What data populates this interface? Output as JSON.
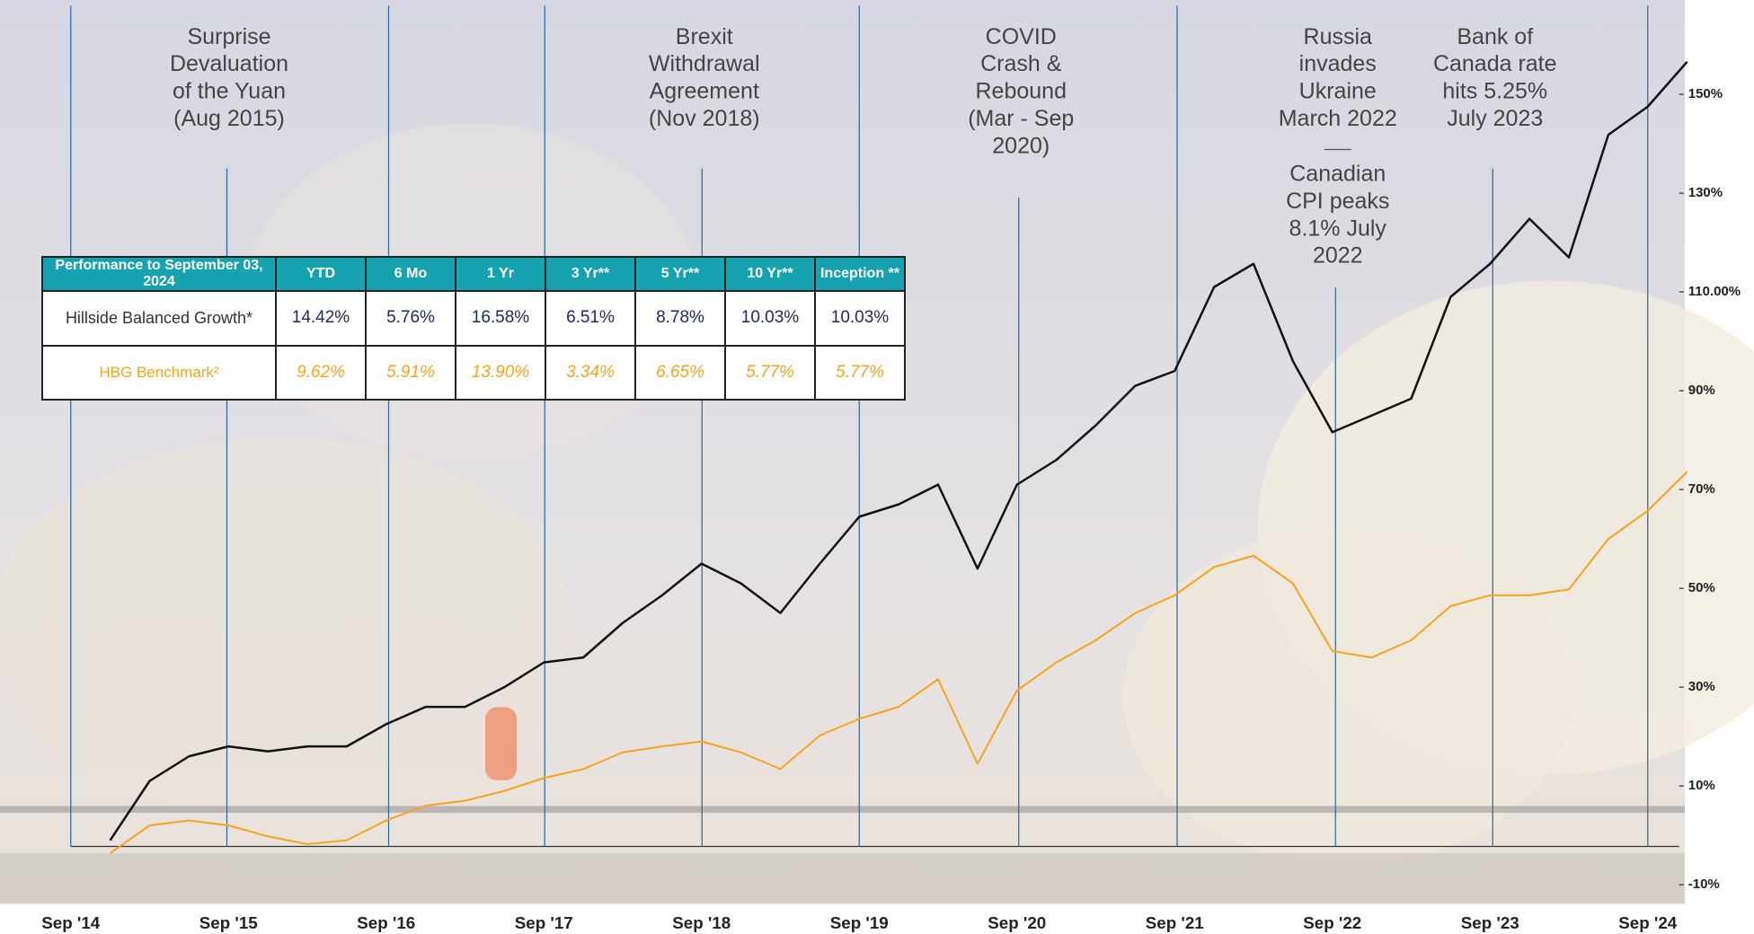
{
  "chart_data": {
    "type": "line",
    "categories": [
      null,
      null,
      null,
      null,
      "Sep '15",
      null,
      null,
      null,
      "Sep '16",
      null,
      null,
      null,
      "Sep '17",
      null,
      null,
      null,
      "Sep '18",
      null,
      null,
      null,
      "Sep '19",
      null,
      null,
      null,
      "Sep '20",
      null,
      null,
      null,
      "Sep '21",
      null,
      null,
      null,
      "Sep '22",
      null,
      null,
      null,
      "Sep '23",
      null,
      null,
      null,
      "Sep '24",
      null
    ],
    "first_label": "Sep '14",
    "series": [
      {
        "name": "Hillside Balanced Growth*",
        "color": "#111111",
        "values": [
          null,
          -1,
          11,
          16,
          18,
          17,
          18,
          18,
          22.5,
          26,
          26,
          30,
          35,
          36,
          43,
          48.6,
          55,
          51,
          45,
          55,
          64.5,
          67,
          71,
          54,
          71,
          76,
          83,
          91,
          94,
          111,
          115.7,
          96,
          81.6,
          85,
          88.4,
          109,
          115.7,
          124.8,
          117,
          141.8,
          147.5,
          156.6
        ]
      },
      {
        "name": "HBG Benchmark²",
        "color": "#f5a41f",
        "values": [
          null,
          -3.6,
          2,
          3,
          2,
          -0.2,
          -1.8,
          -1,
          3,
          6,
          7,
          9,
          11.6,
          13.4,
          16.8,
          18,
          19,
          16.8,
          13.4,
          20.2,
          23.6,
          26,
          31.6,
          14.5,
          29.3,
          35,
          39.5,
          45,
          48.6,
          54.3,
          56.6,
          51,
          37.3,
          36,
          39.5,
          46.4,
          48.6,
          48.6,
          49.8,
          60,
          65.7,
          73.6
        ]
      }
    ],
    "ylim": [
      -12.7,
      169.1
    ],
    "yticks": [
      {
        "value": 150,
        "label": "150%"
      },
      {
        "value": 130,
        "label": "130%"
      },
      {
        "value": 110,
        "label": "110.00%"
      },
      {
        "value": 90,
        "label": "90%"
      },
      {
        "value": 70,
        "label": "70%"
      },
      {
        "value": 50,
        "label": "50%"
      },
      {
        "value": 30,
        "label": "30%"
      },
      {
        "value": 10,
        "label": "10%"
      },
      {
        "value": -10,
        "label": "-10%"
      }
    ],
    "annotations": [
      {
        "lines": [
          "Surprise",
          "Devaluation",
          "of the Yuan",
          "(Aug 2015)"
        ]
      },
      {
        "lines": [
          "Brexit",
          "Withdrawal",
          "Agreement",
          "(Nov 2018)"
        ]
      },
      {
        "lines": [
          "COVID",
          "Crash &",
          "Rebound",
          "(Mar - Sep",
          "2020)"
        ]
      },
      {
        "lines": [
          "Russia",
          "invades",
          "Ukraine",
          "March 2022"
        ],
        "lines2": [
          "Canadian",
          "CPI peaks",
          "8.1% July",
          "2022"
        ]
      },
      {
        "lines": [
          "Bank of",
          "Canada rate",
          "hits 5.25%",
          "July 2023"
        ]
      }
    ]
  },
  "table": {
    "header": [
      "Performance to September 03, 2024",
      "YTD",
      "6 Mo",
      "1 Yr",
      "3 Yr**",
      "5 Yr**",
      "10 Yr**",
      "Inception **"
    ],
    "rows": [
      [
        "Hillside Balanced Growth*",
        "14.42%",
        "5.76%",
        "16.58%",
        "6.51%",
        "8.78%",
        "10.03%",
        "10.03%"
      ],
      [
        "HBG Benchmark²",
        "9.62%",
        "5.91%",
        "13.90%",
        "3.34%",
        "6.65%",
        "5.77%",
        "5.77%"
      ]
    ]
  }
}
